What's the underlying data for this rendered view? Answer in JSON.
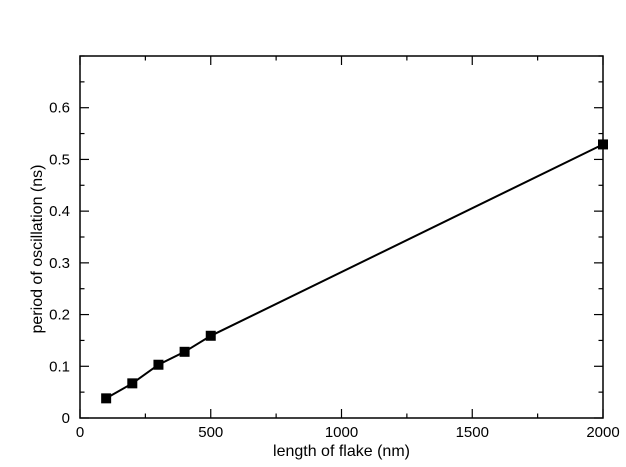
{
  "chart_data": {
    "type": "line",
    "title": "",
    "xlabel": "length of flake (nm)",
    "ylabel": "period of oscillation (ns)",
    "xlim": [
      0,
      2000
    ],
    "ylim": [
      0,
      0.7
    ],
    "xticks": [
      0,
      500,
      1000,
      1500,
      2000
    ],
    "xtick_labels": [
      "0",
      "500",
      "1000",
      "1500",
      "2000"
    ],
    "yticks": [
      0,
      0.1,
      0.2,
      0.3,
      0.4,
      0.5,
      0.6
    ],
    "ytick_labels": [
      "0",
      "0.1",
      "0.2",
      "0.3",
      "0.4",
      "0.5",
      "0.6"
    ],
    "grid": false,
    "legend": "none",
    "marker": "square",
    "line_color": "#000000",
    "series": [
      {
        "x": [
          100,
          200,
          300,
          400,
          500,
          2000
        ],
        "y": [
          0.038,
          0.067,
          0.103,
          0.128,
          0.159,
          0.529
        ]
      }
    ]
  }
}
